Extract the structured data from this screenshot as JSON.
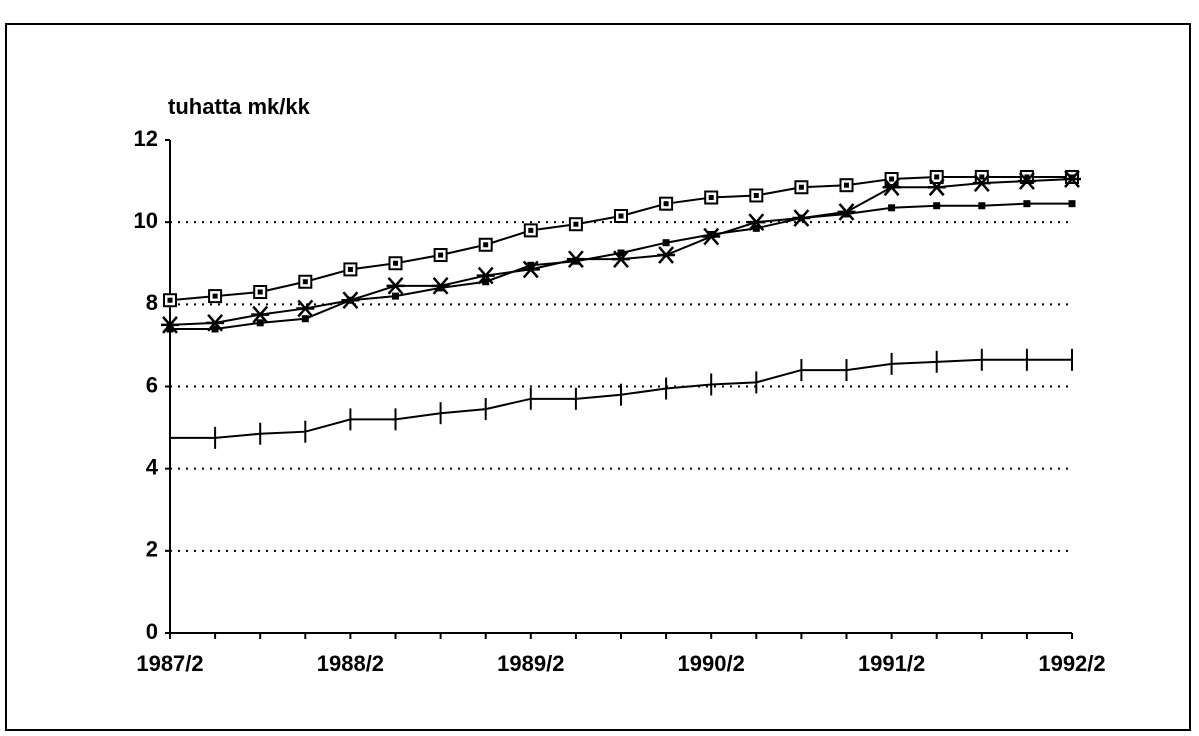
{
  "chart_data": {
    "type": "line",
    "y_label": "tuhatta mk/kk",
    "categories": [
      "1987/2",
      null,
      null,
      null,
      "1988/2",
      null,
      null,
      null,
      "1989/2",
      null,
      null,
      null,
      "1990/2",
      null,
      null,
      null,
      "1991/2",
      null,
      null,
      null,
      "1992/2"
    ],
    "ylim": [
      0,
      12
    ],
    "yticks": [
      0,
      2,
      4,
      6,
      8,
      10,
      12
    ],
    "grid": true,
    "series": [
      {
        "color": "#000000",
        "marker": "square-dot",
        "values": [
          8.1,
          8.2,
          8.3,
          8.55,
          8.85,
          9.0,
          9.2,
          9.45,
          9.8,
          9.95,
          10.15,
          10.45,
          10.6,
          10.65,
          10.85,
          10.9,
          11.05,
          11.1,
          11.1,
          11.1,
          11.1
        ]
      },
      {
        "color": "#000000",
        "marker": "asterisk",
        "values": [
          7.5,
          7.55,
          7.75,
          7.9,
          8.1,
          8.45,
          8.45,
          8.7,
          8.85,
          9.1,
          9.1,
          9.2,
          9.65,
          10.0,
          10.1,
          10.25,
          10.85,
          10.85,
          10.95,
          11.0,
          11.05
        ]
      },
      {
        "color": "#000000",
        "marker": "small-square",
        "values": [
          7.4,
          7.4,
          7.55,
          7.65,
          8.1,
          8.2,
          8.4,
          8.55,
          8.95,
          9.05,
          9.25,
          9.5,
          9.7,
          9.85,
          10.1,
          10.2,
          10.35,
          10.4,
          10.4,
          10.45,
          10.45
        ]
      },
      {
        "color": "#000000",
        "marker": "plus",
        "values": [
          4.75,
          4.75,
          4.85,
          4.9,
          5.2,
          5.2,
          5.35,
          5.45,
          5.7,
          5.7,
          5.8,
          5.95,
          6.05,
          6.1,
          6.4,
          6.4,
          6.55,
          6.6,
          6.65,
          6.65,
          6.65
        ]
      }
    ]
  }
}
